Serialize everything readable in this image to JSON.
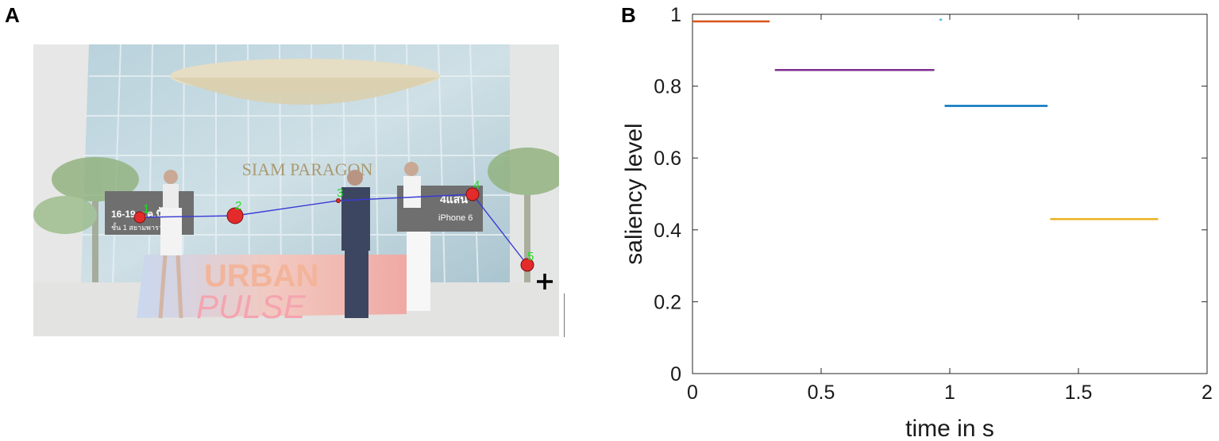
{
  "panels": {
    "a_label": "A",
    "b_label": "B"
  },
  "photo": {
    "description_icon": "photo-icon",
    "building_sign": "SIAM PARAGON",
    "banner_text_1": "URBAN",
    "banner_text_2": "PULSE",
    "left_sign_lines": [
      "16-19 ต.ค.นี้",
      "ชั้น 1 สยามพารากอน"
    ],
    "right_sign_lines": [
      "4แสน",
      "iPhone 6"
    ],
    "fixations": [
      {
        "label": "1",
        "color": "#e32b2b"
      },
      {
        "label": "2",
        "color": "#e32b2b"
      },
      {
        "label": "3",
        "color": "#e32b2b"
      },
      {
        "label": "4",
        "color": "#e32b2b"
      },
      {
        "label": "5",
        "color": "#e32b2b"
      }
    ],
    "fixation_label_color": "#22dd22",
    "scanpath_color": "#3a3ad6"
  },
  "chart_data": {
    "type": "line",
    "title": "",
    "xlabel": "time in s",
    "ylabel": "saliency level",
    "xlim": [
      0,
      2
    ],
    "ylim": [
      0,
      1
    ],
    "xticks": [
      0,
      0.5,
      1,
      1.5,
      2
    ],
    "xtick_labels": [
      "0",
      "0.5",
      "1",
      "1.5",
      "2"
    ],
    "yticks": [
      0,
      0.2,
      0.4,
      0.6,
      0.8,
      1
    ],
    "ytick_labels": [
      "0",
      "0.2",
      "0.4",
      "0.6",
      "0.8",
      "1"
    ],
    "grid": false,
    "series": [
      {
        "x": [
          0.0,
          0.3
        ],
        "y": [
          0.98,
          0.98
        ],
        "color": "#d95319"
      },
      {
        "x": [
          0.32,
          0.94
        ],
        "y": [
          0.845,
          0.845
        ],
        "color": "#7e2f8e"
      },
      {
        "x": [
          0.96,
          0.97
        ],
        "y": [
          0.985,
          0.985
        ],
        "color": "#4dbeee"
      },
      {
        "x": [
          0.98,
          1.38
        ],
        "y": [
          0.745,
          0.745
        ],
        "color": "#0072bd"
      },
      {
        "x": [
          1.39,
          1.81
        ],
        "y": [
          0.43,
          0.43
        ],
        "color": "#edb120"
      }
    ]
  }
}
